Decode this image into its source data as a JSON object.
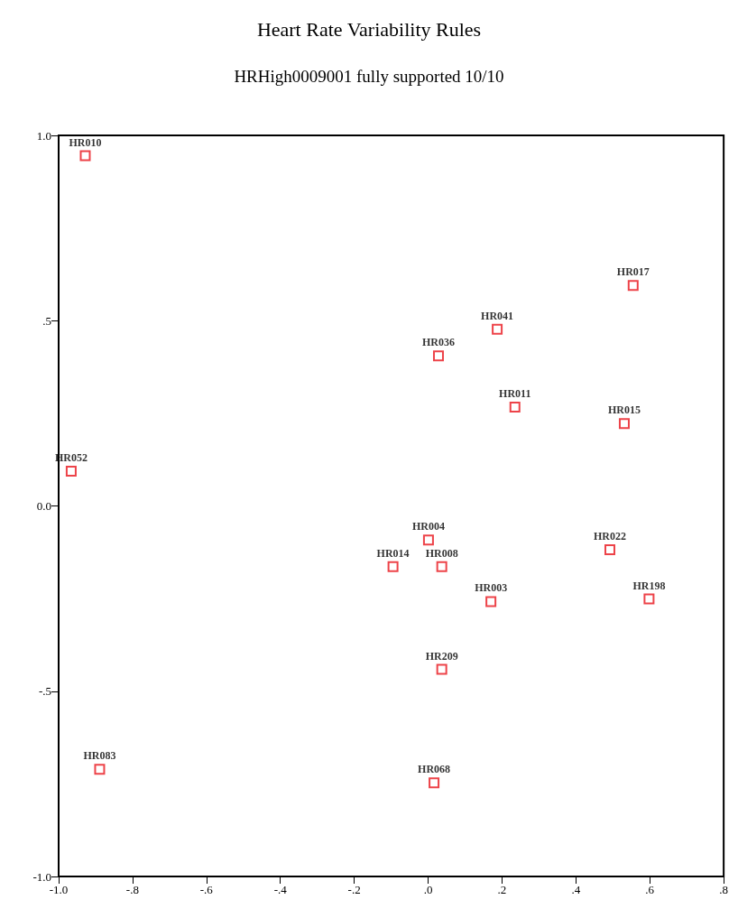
{
  "chart_data": {
    "type": "scatter",
    "title": "Heart Rate Variability Rules",
    "subtitle": "HRHigh0009001 fully supported 10/10",
    "x": [
      -0.928,
      0.555,
      0.187,
      0.028,
      0.235,
      0.531,
      -0.966,
      0.001,
      -0.095,
      0.037,
      0.492,
      0.17,
      0.598,
      0.037,
      -0.889,
      0.016
    ],
    "values": [
      0.945,
      0.595,
      0.477,
      0.405,
      0.267,
      0.222,
      0.094,
      -0.092,
      -0.164,
      -0.164,
      -0.118,
      -0.258,
      -0.251,
      -0.441,
      -0.711,
      -0.747
    ],
    "value_labels": [
      "HR010",
      "HR017",
      "HR041",
      "HR036",
      "HR011",
      "HR015",
      "HR052",
      "HR004",
      "HR014",
      "HR008",
      "HR022",
      "HR003",
      "HR198",
      "HR209",
      "HR083",
      "HR068"
    ],
    "color": "#e8141c",
    "marker": "square",
    "xlim": [
      -1.0,
      0.8
    ],
    "xticks": [
      {
        "value": -1.0,
        "label": "-1.0"
      },
      {
        "value": -0.8,
        "label": "-.8"
      },
      {
        "value": -0.6,
        "label": "-.6"
      },
      {
        "value": -0.4,
        "label": "-.4"
      },
      {
        "value": -0.2,
        "label": "-.2"
      },
      {
        "value": 0,
        "label": ".0"
      },
      {
        "value": 0.2,
        "label": ".2"
      },
      {
        "value": 0.4,
        "label": ".4"
      },
      {
        "value": 0.6,
        "label": ".6"
      },
      {
        "value": 0.8,
        "label": ".8"
      }
    ],
    "ylim": [
      -1.0,
      1.0
    ],
    "yticks": [
      {
        "value": -1.0,
        "label": "-1.0"
      },
      {
        "value": -0.5,
        "label": "-.5"
      },
      {
        "value": 0,
        "label": "0.0"
      },
      {
        "value": 0.5,
        "label": ".5"
      },
      {
        "value": 1.0,
        "label": "1.0"
      }
    ],
    "grid": false
  }
}
